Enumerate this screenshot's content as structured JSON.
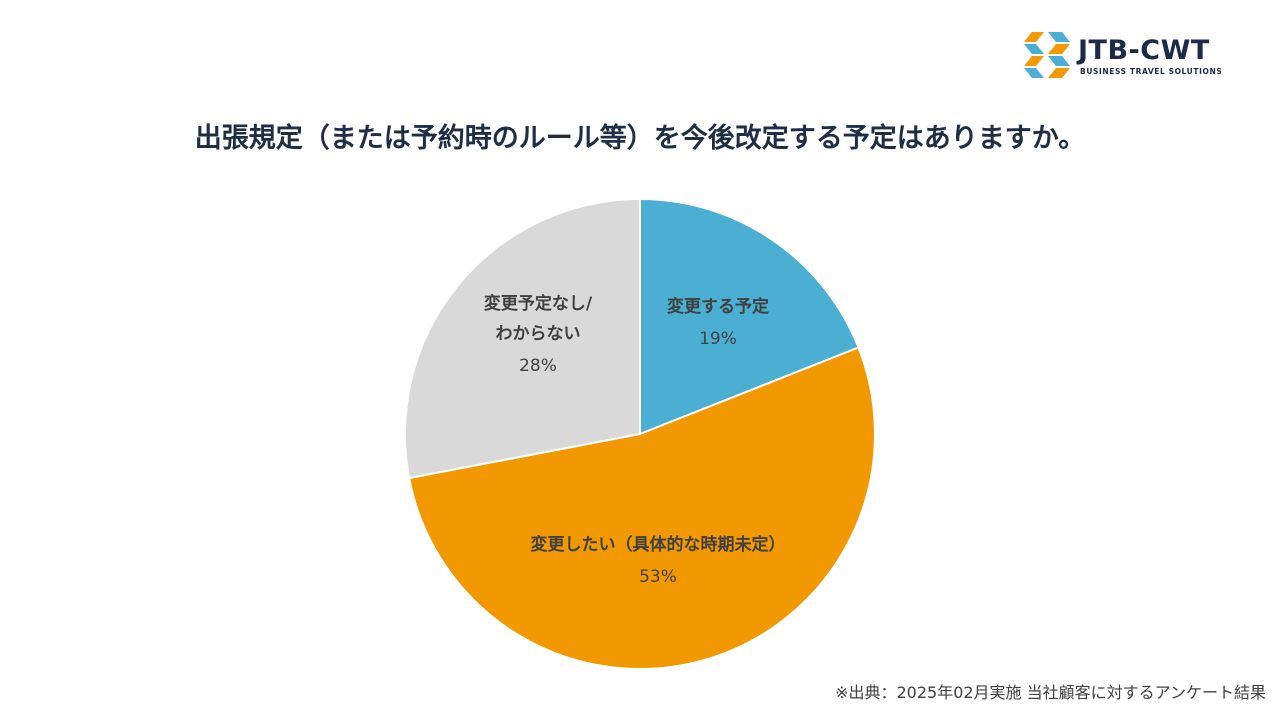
{
  "logo": {
    "name": "JTB-CWT",
    "tagline": "BUSINESS TRAVEL SOLUTIONS",
    "colors": {
      "navy": "#1c2a4b",
      "orange": "#f29800",
      "blue": "#4baed3"
    }
  },
  "title": "出張規定（または予約時のルール等）を今後改定する予定はありますか。",
  "source_note": "※出典：2025年02月実施 当社顧客に対するアンケート結果",
  "chart_data": {
    "type": "pie",
    "title": "出張規定（または予約時のルール等）を今後改定する予定はありますか。",
    "start_angle_deg": 0,
    "direction": "clockwise",
    "slices": [
      {
        "label_lines": [
          "変更する予定"
        ],
        "value": 19,
        "value_text": "19%",
        "color": "#4baed3"
      },
      {
        "label_lines": [
          "変更したい（具体的な時期未定）"
        ],
        "value": 53,
        "value_text": "53%",
        "color": "#f29800"
      },
      {
        "label_lines": [
          "変更予定なし/",
          "わからない"
        ],
        "value": 28,
        "value_text": "28%",
        "color": "#d9d9d9"
      }
    ]
  }
}
